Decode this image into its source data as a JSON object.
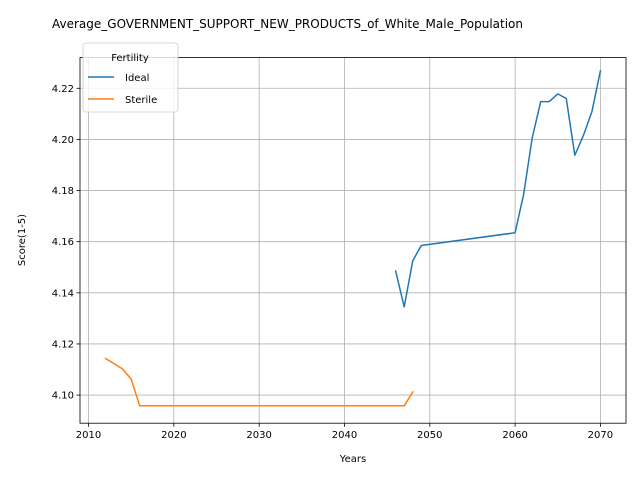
{
  "chart_data": {
    "type": "line",
    "title": "Average_GOVERNMENT_SUPPORT_NEW_PRODUCTS_of_White_Male_Population",
    "xlabel": "Years",
    "ylabel": "Score(1-5)",
    "xlim": [
      2009,
      2073
    ],
    "ylim": [
      4.089,
      4.232
    ],
    "xticks": [
      2010,
      2020,
      2030,
      2040,
      2050,
      2060,
      2070
    ],
    "yticks": [
      4.1,
      4.12,
      4.14,
      4.16,
      4.18,
      4.2,
      4.22
    ],
    "ytick_labels": [
      "4.10",
      "4.12",
      "4.14",
      "4.16",
      "4.18",
      "4.20",
      "4.22"
    ],
    "grid": true,
    "legend": {
      "title": "Fertility",
      "placement": "top-left"
    },
    "series": [
      {
        "name": "Ideal",
        "color": "#1f77b4",
        "x": [
          2046,
          2047,
          2048,
          2049,
          2060,
          2061,
          2062,
          2063,
          2064,
          2065,
          2066,
          2067,
          2068,
          2069,
          2070
        ],
        "y": [
          4.1485,
          4.1345,
          4.1525,
          4.1585,
          4.1635,
          4.1785,
          4.2005,
          4.2148,
          4.2148,
          4.2178,
          4.216,
          4.1938,
          4.2015,
          4.2108,
          4.2268
        ]
      },
      {
        "name": "Sterile",
        "color": "#ff7f0e",
        "x": [
          2012,
          2014,
          2015,
          2016,
          2020,
          2030,
          2040,
          2047,
          2048
        ],
        "y": [
          4.1143,
          4.1102,
          4.1062,
          4.0958,
          4.0958,
          4.0958,
          4.0958,
          4.0958,
          4.1012
        ]
      }
    ]
  }
}
